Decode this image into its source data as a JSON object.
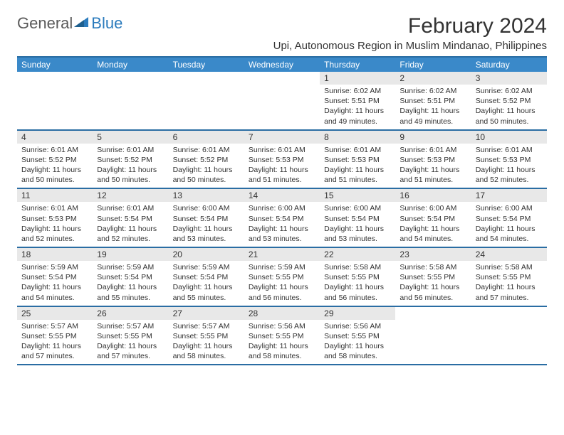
{
  "logo": {
    "text1": "General",
    "text2": "Blue"
  },
  "title": "February 2024",
  "location": "Upi, Autonomous Region in Muslim Mindanao, Philippines",
  "colors": {
    "header_bg": "#3a89c9",
    "header_border": "#2a6da3",
    "daynum_bg": "#e8e8e8",
    "text": "#333333",
    "logo_gray": "#5a5a5a",
    "logo_blue": "#2b7bbd"
  },
  "day_names": [
    "Sunday",
    "Monday",
    "Tuesday",
    "Wednesday",
    "Thursday",
    "Friday",
    "Saturday"
  ],
  "weeks": [
    [
      null,
      null,
      null,
      null,
      {
        "n": "1",
        "sr": "6:02 AM",
        "ss": "5:51 PM",
        "dl": "11 hours and 49 minutes."
      },
      {
        "n": "2",
        "sr": "6:02 AM",
        "ss": "5:51 PM",
        "dl": "11 hours and 49 minutes."
      },
      {
        "n": "3",
        "sr": "6:02 AM",
        "ss": "5:52 PM",
        "dl": "11 hours and 50 minutes."
      }
    ],
    [
      {
        "n": "4",
        "sr": "6:01 AM",
        "ss": "5:52 PM",
        "dl": "11 hours and 50 minutes."
      },
      {
        "n": "5",
        "sr": "6:01 AM",
        "ss": "5:52 PM",
        "dl": "11 hours and 50 minutes."
      },
      {
        "n": "6",
        "sr": "6:01 AM",
        "ss": "5:52 PM",
        "dl": "11 hours and 50 minutes."
      },
      {
        "n": "7",
        "sr": "6:01 AM",
        "ss": "5:53 PM",
        "dl": "11 hours and 51 minutes."
      },
      {
        "n": "8",
        "sr": "6:01 AM",
        "ss": "5:53 PM",
        "dl": "11 hours and 51 minutes."
      },
      {
        "n": "9",
        "sr": "6:01 AM",
        "ss": "5:53 PM",
        "dl": "11 hours and 51 minutes."
      },
      {
        "n": "10",
        "sr": "6:01 AM",
        "ss": "5:53 PM",
        "dl": "11 hours and 52 minutes."
      }
    ],
    [
      {
        "n": "11",
        "sr": "6:01 AM",
        "ss": "5:53 PM",
        "dl": "11 hours and 52 minutes."
      },
      {
        "n": "12",
        "sr": "6:01 AM",
        "ss": "5:54 PM",
        "dl": "11 hours and 52 minutes."
      },
      {
        "n": "13",
        "sr": "6:00 AM",
        "ss": "5:54 PM",
        "dl": "11 hours and 53 minutes."
      },
      {
        "n": "14",
        "sr": "6:00 AM",
        "ss": "5:54 PM",
        "dl": "11 hours and 53 minutes."
      },
      {
        "n": "15",
        "sr": "6:00 AM",
        "ss": "5:54 PM",
        "dl": "11 hours and 53 minutes."
      },
      {
        "n": "16",
        "sr": "6:00 AM",
        "ss": "5:54 PM",
        "dl": "11 hours and 54 minutes."
      },
      {
        "n": "17",
        "sr": "6:00 AM",
        "ss": "5:54 PM",
        "dl": "11 hours and 54 minutes."
      }
    ],
    [
      {
        "n": "18",
        "sr": "5:59 AM",
        "ss": "5:54 PM",
        "dl": "11 hours and 54 minutes."
      },
      {
        "n": "19",
        "sr": "5:59 AM",
        "ss": "5:54 PM",
        "dl": "11 hours and 55 minutes."
      },
      {
        "n": "20",
        "sr": "5:59 AM",
        "ss": "5:54 PM",
        "dl": "11 hours and 55 minutes."
      },
      {
        "n": "21",
        "sr": "5:59 AM",
        "ss": "5:55 PM",
        "dl": "11 hours and 56 minutes."
      },
      {
        "n": "22",
        "sr": "5:58 AM",
        "ss": "5:55 PM",
        "dl": "11 hours and 56 minutes."
      },
      {
        "n": "23",
        "sr": "5:58 AM",
        "ss": "5:55 PM",
        "dl": "11 hours and 56 minutes."
      },
      {
        "n": "24",
        "sr": "5:58 AM",
        "ss": "5:55 PM",
        "dl": "11 hours and 57 minutes."
      }
    ],
    [
      {
        "n": "25",
        "sr": "5:57 AM",
        "ss": "5:55 PM",
        "dl": "11 hours and 57 minutes."
      },
      {
        "n": "26",
        "sr": "5:57 AM",
        "ss": "5:55 PM",
        "dl": "11 hours and 57 minutes."
      },
      {
        "n": "27",
        "sr": "5:57 AM",
        "ss": "5:55 PM",
        "dl": "11 hours and 58 minutes."
      },
      {
        "n": "28",
        "sr": "5:56 AM",
        "ss": "5:55 PM",
        "dl": "11 hours and 58 minutes."
      },
      {
        "n": "29",
        "sr": "5:56 AM",
        "ss": "5:55 PM",
        "dl": "11 hours and 58 minutes."
      },
      null,
      null
    ]
  ],
  "labels": {
    "sunrise": "Sunrise:",
    "sunset": "Sunset:",
    "daylight": "Daylight:"
  }
}
